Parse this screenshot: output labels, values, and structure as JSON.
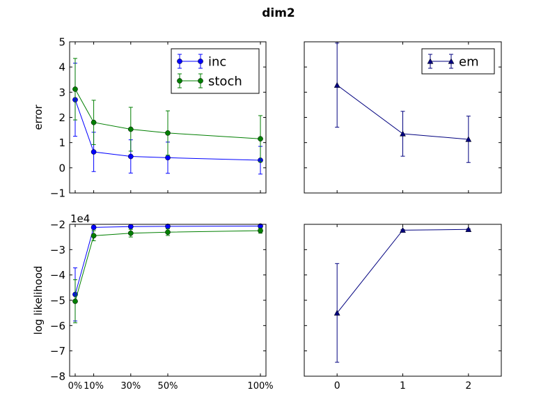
{
  "figure": {
    "title": "dim2"
  },
  "chart_data": [
    {
      "id": "tl",
      "type": "line",
      "ylabel": "error",
      "xlabel": "",
      "xlim": [
        -0.03,
        1.03
      ],
      "ylim": [
        -1,
        5
      ],
      "y_ticks": [
        -1,
        0,
        1,
        2,
        3,
        4,
        5
      ],
      "x_ticks": [
        0,
        0.1,
        0.3,
        0.5,
        1.0
      ],
      "x_tick_labels": [
        "",
        "",
        "",
        "",
        ""
      ],
      "legend": {
        "position": "top-right",
        "entries": [
          "inc",
          "stoch"
        ]
      },
      "series": [
        {
          "name": "inc",
          "color": "#0000ff",
          "marker": "circle",
          "x": [
            0,
            0.1,
            0.3,
            0.5,
            1.0
          ],
          "y": [
            2.7,
            0.63,
            0.45,
            0.4,
            0.3
          ],
          "err": [
            1.45,
            0.78,
            0.66,
            0.62,
            0.55
          ]
        },
        {
          "name": "stoch",
          "color": "#007f00",
          "marker": "circle",
          "x": [
            0,
            0.1,
            0.3,
            0.5,
            1.0
          ],
          "y": [
            3.12,
            1.8,
            1.53,
            1.38,
            1.15
          ],
          "err": [
            1.22,
            0.88,
            0.87,
            0.88,
            0.92
          ]
        }
      ]
    },
    {
      "id": "tr",
      "type": "line",
      "ylabel": "",
      "xlabel": "",
      "xlim": [
        -0.5,
        2.5
      ],
      "ylim": [
        -1,
        5
      ],
      "y_ticks": [
        -1,
        0,
        1,
        2,
        3,
        4,
        5
      ],
      "y_tick_labels": [
        "",
        "",
        "",
        "",
        "",
        "",
        ""
      ],
      "x_ticks": [
        0,
        1,
        2
      ],
      "x_tick_labels": [
        "",
        "",
        ""
      ],
      "legend": {
        "position": "top-right",
        "entries": [
          "em"
        ]
      },
      "series": [
        {
          "name": "em",
          "color": "#00007f",
          "marker": "triangle",
          "x": [
            0,
            1,
            2
          ],
          "y": [
            3.28,
            1.35,
            1.13
          ],
          "err": [
            1.67,
            0.89,
            0.92
          ]
        }
      ]
    },
    {
      "id": "bl",
      "type": "line",
      "ylabel": "log likelihood",
      "xlabel": "",
      "offset_label": "1e4",
      "xlim": [
        -0.03,
        1.03
      ],
      "ylim": [
        -8,
        -2
      ],
      "y_ticks": [
        -8,
        -7,
        -6,
        -5,
        -4,
        -3,
        -2
      ],
      "y_tick_labels": [
        "−8",
        "−7",
        "−6",
        "−5",
        "−4",
        "−3",
        "−2"
      ],
      "x_ticks": [
        0,
        0.1,
        0.3,
        0.5,
        1.0
      ],
      "x_tick_labels": [
        "0%",
        "10%",
        "30%",
        "50%",
        "100%"
      ],
      "series": [
        {
          "name": "inc",
          "color": "#0000ff",
          "marker": "circle",
          "x": [
            0,
            0.1,
            0.3,
            0.5,
            1.0
          ],
          "y": [
            -4.77,
            -2.12,
            -2.09,
            -2.08,
            -2.07
          ],
          "err": [
            1.05,
            0.07,
            0.05,
            0.05,
            0.04
          ]
        },
        {
          "name": "stoch",
          "color": "#007f00",
          "marker": "circle",
          "x": [
            0,
            0.1,
            0.3,
            0.5,
            1.0
          ],
          "y": [
            -5.04,
            -2.45,
            -2.35,
            -2.31,
            -2.25
          ],
          "err": [
            0.85,
            0.2,
            0.15,
            0.13,
            0.1
          ]
        }
      ]
    },
    {
      "id": "br",
      "type": "line",
      "ylabel": "",
      "xlabel": "",
      "xlim": [
        -0.5,
        2.5
      ],
      "ylim": [
        -8,
        -2
      ],
      "y_ticks": [
        -8,
        -7,
        -6,
        -5,
        -4,
        -3,
        -2
      ],
      "y_tick_labels": [
        "",
        "",
        "",
        "",
        "",
        "",
        ""
      ],
      "x_ticks": [
        0,
        1,
        2
      ],
      "x_tick_labels": [
        "0",
        "1",
        "2"
      ],
      "series": [
        {
          "name": "em",
          "color": "#00007f",
          "marker": "triangle",
          "x": [
            0,
            1,
            2
          ],
          "y": [
            -5.5,
            -2.23,
            -2.2
          ],
          "err": [
            1.95,
            0.02,
            0.02
          ]
        }
      ]
    }
  ]
}
